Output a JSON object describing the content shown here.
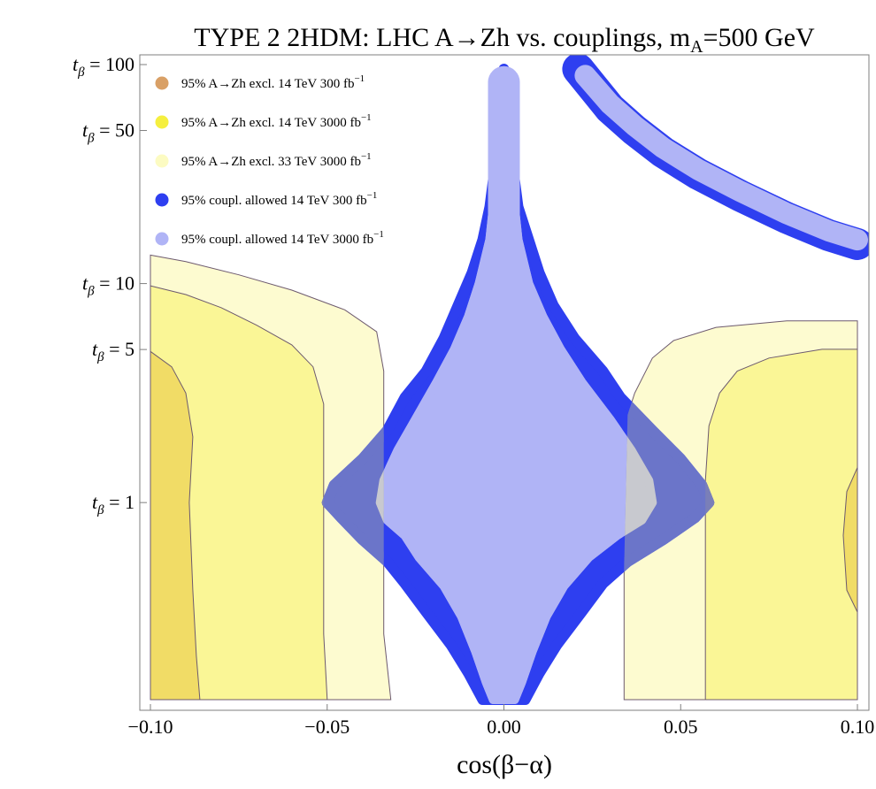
{
  "chart_data": {
    "type": "contour",
    "title": "TYPE 2 2HDM: LHC A→Zh vs. couplings, m",
    "title_subscript": "A",
    "title_suffix": "=500 GeV",
    "xlabel": "cos(β−α)",
    "xlim": [
      -0.1,
      0.1
    ],
    "ylim_log10": [
      -0.9,
      2.0
    ],
    "x_ticks": [
      {
        "value": -0.1,
        "label": "−0.10"
      },
      {
        "value": -0.05,
        "label": "−0.05"
      },
      {
        "value": 0.0,
        "label": "0.00"
      },
      {
        "value": 0.05,
        "label": "0.05"
      },
      {
        "value": 0.1,
        "label": "0.10"
      }
    ],
    "y_ticks": [
      {
        "value": 100,
        "label": "t",
        "sub": "β",
        "suffix": " = 100"
      },
      {
        "value": 50,
        "label": "t",
        "sub": "β",
        "suffix": " = 50"
      },
      {
        "value": 10,
        "label": "t",
        "sub": "β",
        "suffix": " = 10"
      },
      {
        "value": 5,
        "label": "t",
        "sub": "β",
        "suffix": " = 5"
      },
      {
        "value": 1,
        "label": "t",
        "sub": "β",
        "suffix": " = 1"
      }
    ],
    "legend": [
      {
        "text": "95% A→Zh excl. 14 TeV 300 fb",
        "sup": "−1",
        "color": "#d9a066"
      },
      {
        "text": "95% A→Zh excl. 14 TeV 3000 fb",
        "sup": "−1",
        "color": "#f5ef3f"
      },
      {
        "text": "95% A→Zh excl. 33 TeV 3000 fb",
        "sup": "−1",
        "color": "#fcfbc2"
      },
      {
        "text": "95% coupl. allowed 14 TeV 300 fb",
        "sup": "−1",
        "color": "#2e3ff0"
      },
      {
        "text": "95% coupl. allowed 14 TeV 3000 fb",
        "sup": "−1",
        "color": "#b0b4f6"
      }
    ],
    "regions": [
      {
        "name": "excl-33TeV-3000-left",
        "color": "#fdfbd0",
        "points": [
          [
            -0.1,
            1.13
          ],
          [
            -0.09,
            1.1
          ],
          [
            -0.075,
            1.04
          ],
          [
            -0.06,
            0.97
          ],
          [
            -0.045,
            0.88
          ],
          [
            -0.036,
            0.78
          ],
          [
            -0.034,
            0.6
          ],
          [
            -0.034,
            0.0
          ],
          [
            -0.034,
            -0.6
          ],
          [
            -0.032,
            -0.9
          ],
          [
            -0.1,
            -0.9
          ]
        ]
      },
      {
        "name": "excl-33TeV-3000-right",
        "color": "#fdfbd0",
        "points": [
          [
            0.034,
            -0.9
          ],
          [
            0.034,
            -0.3
          ],
          [
            0.035,
            0.4
          ],
          [
            0.037,
            0.5
          ],
          [
            0.042,
            0.66
          ],
          [
            0.048,
            0.74
          ],
          [
            0.06,
            0.8
          ],
          [
            0.08,
            0.83
          ],
          [
            0.1,
            0.83
          ],
          [
            0.1,
            -0.9
          ]
        ]
      },
      {
        "name": "excl-14TeV-3000-left",
        "color": "#faf696",
        "points": [
          [
            -0.1,
            0.99
          ],
          [
            -0.09,
            0.95
          ],
          [
            -0.08,
            0.89
          ],
          [
            -0.07,
            0.81
          ],
          [
            -0.06,
            0.72
          ],
          [
            -0.054,
            0.62
          ],
          [
            -0.051,
            0.45
          ],
          [
            -0.051,
            -0.2
          ],
          [
            -0.051,
            -0.6
          ],
          [
            -0.05,
            -0.9
          ],
          [
            -0.1,
            -0.9
          ]
        ]
      },
      {
        "name": "excl-14TeV-3000-right",
        "color": "#faf696",
        "points": [
          [
            0.057,
            -0.9
          ],
          [
            0.057,
            -0.4
          ],
          [
            0.057,
            0.1
          ],
          [
            0.058,
            0.35
          ],
          [
            0.061,
            0.5
          ],
          [
            0.066,
            0.6
          ],
          [
            0.075,
            0.66
          ],
          [
            0.09,
            0.7
          ],
          [
            0.1,
            0.7
          ],
          [
            0.1,
            -0.9
          ]
        ]
      },
      {
        "name": "excl-14TeV-300-left",
        "color": "#f1dc66",
        "points": [
          [
            -0.1,
            0.69
          ],
          [
            -0.094,
            0.62
          ],
          [
            -0.09,
            0.5
          ],
          [
            -0.088,
            0.3
          ],
          [
            -0.089,
            0.0
          ],
          [
            -0.088,
            -0.4
          ],
          [
            -0.087,
            -0.7
          ],
          [
            -0.086,
            -0.9
          ],
          [
            -0.1,
            -0.9
          ]
        ]
      },
      {
        "name": "excl-14TeV-300-right",
        "color": "#f1dc66",
        "points": [
          [
            0.1,
            0.16
          ],
          [
            0.097,
            0.05
          ],
          [
            0.096,
            -0.15
          ],
          [
            0.097,
            -0.4
          ],
          [
            0.1,
            -0.5
          ]
        ]
      },
      {
        "name": "coupl-300-central",
        "color": "#2e3ff0",
        "points": [
          [
            0.0,
            1.98
          ],
          [
            0.002,
            1.6
          ],
          [
            0.004,
            1.35
          ],
          [
            0.007,
            1.2
          ],
          [
            0.01,
            1.05
          ],
          [
            0.014,
            0.9
          ],
          [
            0.02,
            0.75
          ],
          [
            0.028,
            0.6
          ],
          [
            0.033,
            0.48
          ],
          [
            0.042,
            0.33
          ],
          [
            0.05,
            0.2
          ],
          [
            0.056,
            0.08
          ],
          [
            0.058,
            0.0
          ],
          [
            0.054,
            -0.07
          ],
          [
            0.045,
            -0.17
          ],
          [
            0.035,
            -0.27
          ],
          [
            0.028,
            -0.37
          ],
          [
            0.022,
            -0.5
          ],
          [
            0.015,
            -0.65
          ],
          [
            0.01,
            -0.78
          ],
          [
            0.006,
            -0.9
          ],
          [
            -0.006,
            -0.9
          ],
          [
            -0.01,
            -0.78
          ],
          [
            -0.015,
            -0.65
          ],
          [
            -0.022,
            -0.5
          ],
          [
            -0.028,
            -0.37
          ],
          [
            -0.033,
            -0.27
          ],
          [
            -0.04,
            -0.17
          ],
          [
            -0.046,
            -0.07
          ],
          [
            -0.05,
            0.0
          ],
          [
            -0.048,
            0.08
          ],
          [
            -0.04,
            0.2
          ],
          [
            -0.033,
            0.33
          ],
          [
            -0.028,
            0.48
          ],
          [
            -0.022,
            0.6
          ],
          [
            -0.017,
            0.75
          ],
          [
            -0.013,
            0.9
          ],
          [
            -0.009,
            1.05
          ],
          [
            -0.006,
            1.2
          ],
          [
            -0.004,
            1.35
          ],
          [
            -0.002,
            1.6
          ],
          [
            0.0,
            1.98
          ]
        ]
      },
      {
        "name": "coupl-3000-central",
        "color": "#b0b4f6",
        "points": [
          [
            0.0,
            1.95
          ],
          [
            0.002,
            1.5
          ],
          [
            0.004,
            1.2
          ],
          [
            0.007,
            1.0
          ],
          [
            0.011,
            0.85
          ],
          [
            0.016,
            0.7
          ],
          [
            0.022,
            0.55
          ],
          [
            0.03,
            0.38
          ],
          [
            0.036,
            0.24
          ],
          [
            0.041,
            0.1
          ],
          [
            0.042,
            0.0
          ],
          [
            0.039,
            -0.08
          ],
          [
            0.032,
            -0.15
          ],
          [
            0.024,
            -0.25
          ],
          [
            0.017,
            -0.38
          ],
          [
            0.012,
            -0.52
          ],
          [
            0.008,
            -0.68
          ],
          [
            0.005,
            -0.82
          ],
          [
            0.003,
            -0.9
          ],
          [
            -0.003,
            -0.9
          ],
          [
            -0.005,
            -0.82
          ],
          [
            -0.008,
            -0.68
          ],
          [
            -0.012,
            -0.52
          ],
          [
            -0.017,
            -0.38
          ],
          [
            -0.024,
            -0.25
          ],
          [
            -0.028,
            -0.15
          ],
          [
            -0.033,
            -0.08
          ],
          [
            -0.035,
            0.0
          ],
          [
            -0.034,
            0.1
          ],
          [
            -0.03,
            0.24
          ],
          [
            -0.025,
            0.38
          ],
          [
            -0.019,
            0.55
          ],
          [
            -0.014,
            0.7
          ],
          [
            -0.01,
            0.85
          ],
          [
            -0.007,
            1.0
          ],
          [
            -0.004,
            1.2
          ],
          [
            -0.002,
            1.5
          ],
          [
            0.0,
            1.95
          ]
        ]
      }
    ],
    "bands": [
      {
        "name": "coupl-300-upper-band",
        "color": "#2e3ff0",
        "width_units": 0.0045,
        "points": [
          [
            0.021,
            1.98
          ],
          [
            0.025,
            1.9
          ],
          [
            0.03,
            1.8
          ],
          [
            0.037,
            1.7
          ],
          [
            0.045,
            1.6
          ],
          [
            0.055,
            1.5
          ],
          [
            0.067,
            1.4
          ],
          [
            0.08,
            1.3
          ],
          [
            0.092,
            1.22
          ],
          [
            0.1,
            1.18
          ]
        ]
      },
      {
        "name": "coupl-3000-upper-band",
        "color": "#b0b4f6",
        "width_units": 0.003,
        "points": [
          [
            0.023,
            1.95
          ],
          [
            0.03,
            1.82
          ],
          [
            0.037,
            1.72
          ],
          [
            0.045,
            1.62
          ],
          [
            0.055,
            1.52
          ],
          [
            0.067,
            1.42
          ],
          [
            0.08,
            1.32
          ],
          [
            0.092,
            1.24
          ],
          [
            0.1,
            1.2
          ]
        ]
      },
      {
        "name": "coupl-3000-central-needle",
        "color": "#b0b4f6",
        "width_units": 0.0045,
        "points": [
          [
            0.0,
            1.92
          ],
          [
            0.0,
            1.5
          ],
          [
            0.0,
            1.2
          ]
        ]
      }
    ],
    "overlay_colors": {
      "blue_over_yellow": "#6b75c9",
      "blue_over_pale": "#7279cc",
      "light_over_yellow": "#bcbd9a",
      "light_over_pale": "#c8c9cf"
    }
  }
}
